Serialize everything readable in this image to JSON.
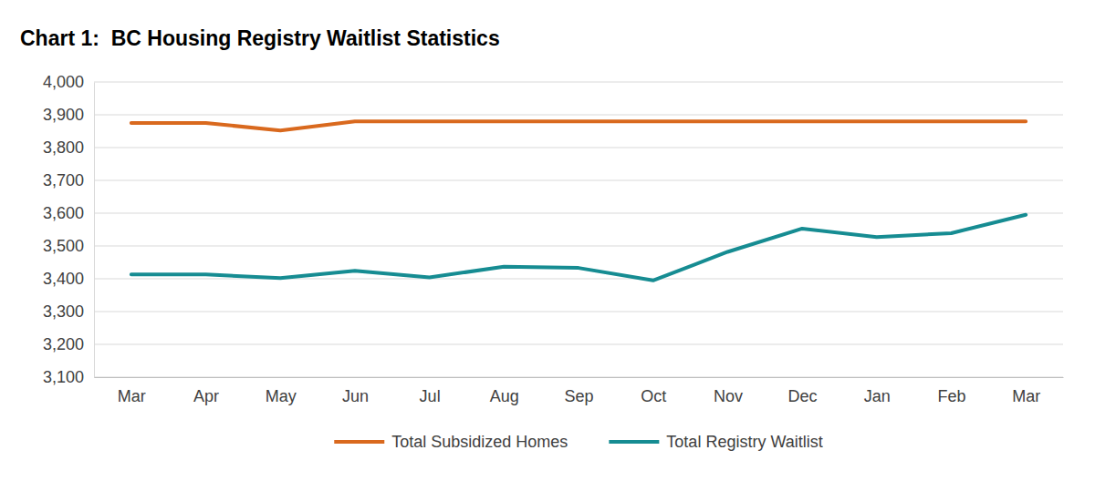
{
  "chart_data": {
    "type": "line",
    "title": "Chart 1:  BC Housing Registry Waitlist Statistics",
    "categories": [
      "Mar",
      "Apr",
      "May",
      "Jun",
      "Jul",
      "Aug",
      "Sep",
      "Oct",
      "Nov",
      "Dec",
      "Jan",
      "Feb",
      "Mar"
    ],
    "series": [
      {
        "name": "Total Subsidized Homes",
        "color": "#d9691e",
        "values": [
          3875,
          3875,
          3852,
          3880,
          3880,
          3880,
          3880,
          3880,
          3880,
          3880,
          3880,
          3880,
          3880
        ]
      },
      {
        "name": "Total Registry Waitlist",
        "color": "#168c92",
        "values": [
          3413,
          3413,
          3402,
          3424,
          3404,
          3437,
          3433,
          3395,
          3482,
          3553,
          3527,
          3539,
          3595
        ]
      }
    ],
    "ylim": [
      3100,
      4000
    ],
    "yticks": [
      {
        "value": 3100,
        "label": "3,100"
      },
      {
        "value": 3200,
        "label": "3,200"
      },
      {
        "value": 3300,
        "label": "3,300"
      },
      {
        "value": 3400,
        "label": "3,400"
      },
      {
        "value": 3500,
        "label": "3,500"
      },
      {
        "value": 3600,
        "label": "3,600"
      },
      {
        "value": 3700,
        "label": "3,700"
      },
      {
        "value": 3800,
        "label": "3,800"
      },
      {
        "value": 3900,
        "label": "3,900"
      },
      {
        "value": 4000,
        "label": "4,000"
      }
    ],
    "grid": true,
    "legend": "bottom"
  }
}
